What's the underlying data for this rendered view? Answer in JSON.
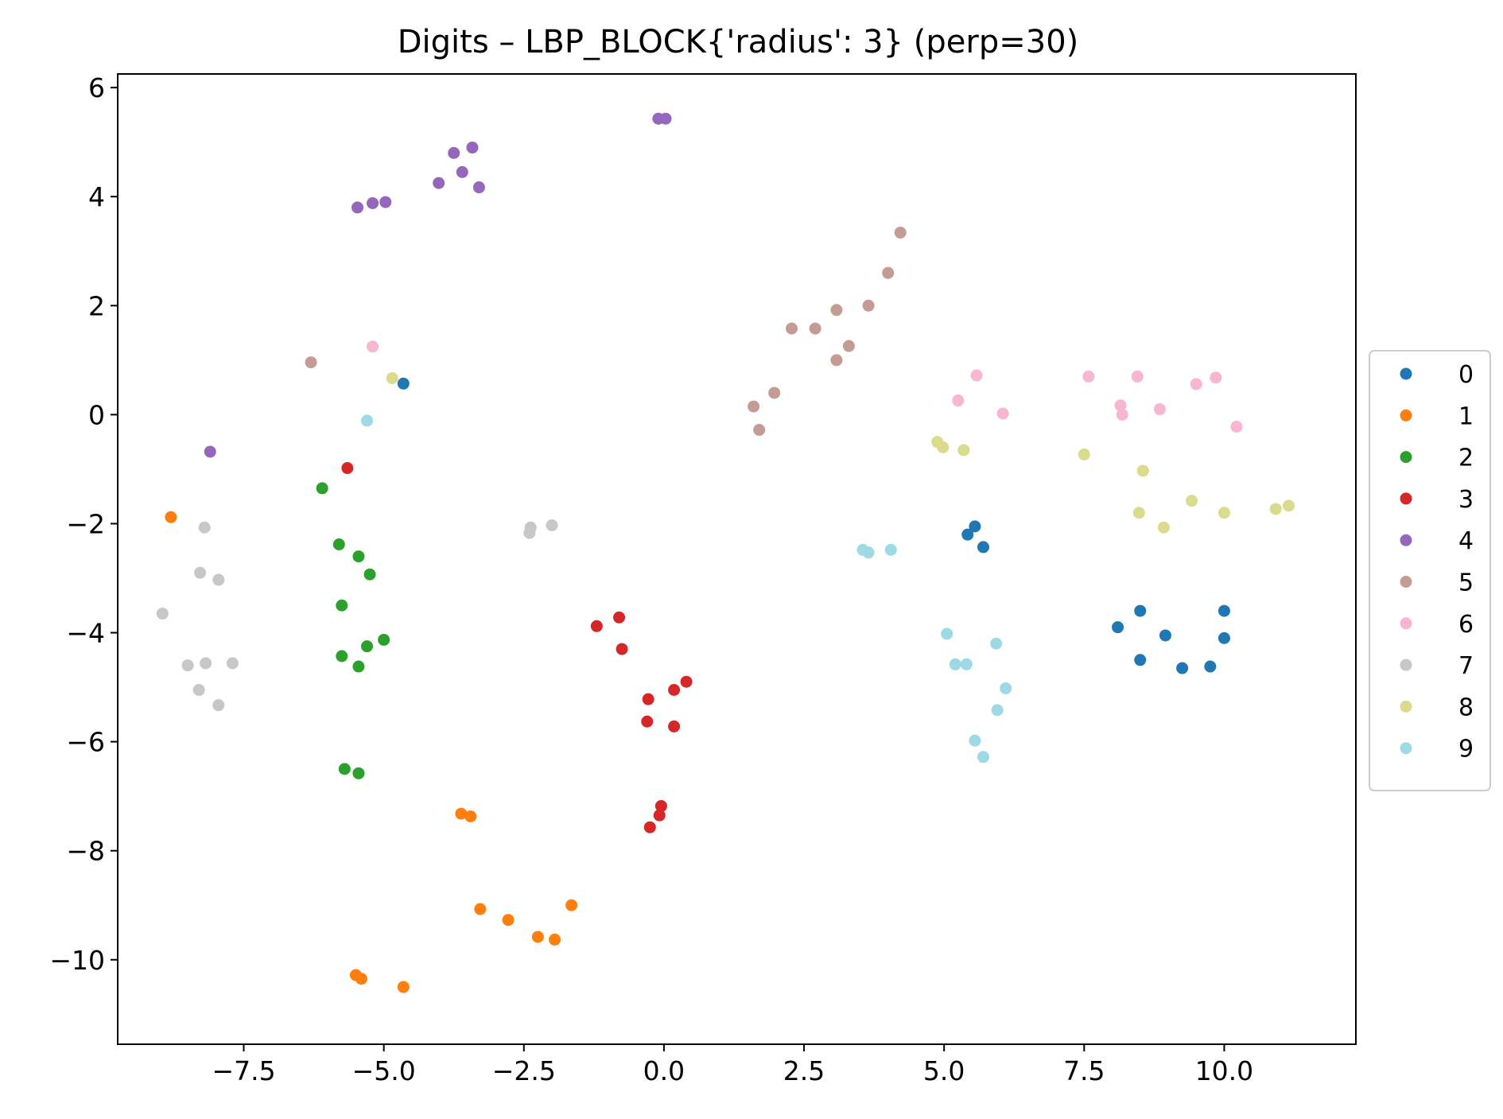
{
  "chart_data": {
    "type": "scatter",
    "title": "Digits – LBP_BLOCK{'radius': 3} (perp=30)",
    "xlabel": "",
    "ylabel": "",
    "xlim": [
      -9.75,
      12.35
    ],
    "ylim": [
      -11.55,
      6.25
    ],
    "xticks": [
      -7.5,
      -5.0,
      -2.5,
      0.0,
      2.5,
      5.0,
      7.5,
      10.0
    ],
    "xtick_labels": [
      "−7.5",
      "−5.0",
      "−2.5",
      "0.0",
      "2.5",
      "5.0",
      "7.5",
      "10.0"
    ],
    "yticks": [
      6,
      4,
      2,
      0,
      -2,
      -4,
      -6,
      -8,
      -10
    ],
    "ytick_labels": [
      "6",
      "4",
      "2",
      "0",
      "−2",
      "−4",
      "−6",
      "−8",
      "−10"
    ],
    "grid": false,
    "legend_position": "outside-right",
    "series": [
      {
        "name": "0",
        "color": "#1f77b4",
        "points": [
          [
            -4.65,
            0.57
          ],
          [
            5.55,
            -2.05
          ],
          [
            5.42,
            -2.2
          ],
          [
            5.7,
            -2.43
          ],
          [
            8.5,
            -3.6
          ],
          [
            10.0,
            -3.6
          ],
          [
            8.1,
            -3.9
          ],
          [
            8.95,
            -4.05
          ],
          [
            10.0,
            -4.1
          ],
          [
            8.5,
            -4.5
          ],
          [
            9.25,
            -4.65
          ],
          [
            9.75,
            -4.62
          ]
        ]
      },
      {
        "name": "1",
        "color": "#ff7f0e",
        "points": [
          [
            -8.8,
            -1.88
          ],
          [
            -3.62,
            -7.32
          ],
          [
            -3.45,
            -7.37
          ],
          [
            -3.28,
            -9.07
          ],
          [
            -2.78,
            -9.27
          ],
          [
            -1.65,
            -9.0
          ],
          [
            -2.25,
            -9.58
          ],
          [
            -1.95,
            -9.63
          ],
          [
            -5.5,
            -10.28
          ],
          [
            -5.4,
            -10.35
          ],
          [
            -4.65,
            -10.5
          ]
        ]
      },
      {
        "name": "2",
        "color": "#2ca02c",
        "points": [
          [
            -6.1,
            -1.35
          ],
          [
            -5.8,
            -2.38
          ],
          [
            -5.45,
            -2.6
          ],
          [
            -5.25,
            -2.93
          ],
          [
            -5.75,
            -3.5
          ],
          [
            -5.0,
            -4.13
          ],
          [
            -5.3,
            -4.25
          ],
          [
            -5.75,
            -4.43
          ],
          [
            -5.45,
            -4.62
          ],
          [
            -5.7,
            -6.5
          ],
          [
            -5.45,
            -6.58
          ]
        ]
      },
      {
        "name": "3",
        "color": "#d62728",
        "points": [
          [
            -5.65,
            -0.98
          ],
          [
            -1.2,
            -3.88
          ],
          [
            -0.8,
            -3.72
          ],
          [
            -0.75,
            -4.3
          ],
          [
            0.4,
            -4.9
          ],
          [
            0.18,
            -5.05
          ],
          [
            -0.28,
            -5.22
          ],
          [
            -0.3,
            -5.63
          ],
          [
            0.18,
            -5.72
          ],
          [
            -0.05,
            -7.18
          ],
          [
            -0.08,
            -7.35
          ],
          [
            -0.25,
            -7.57
          ]
        ]
      },
      {
        "name": "4",
        "color": "#9467bd",
        "points": [
          [
            -0.1,
            5.43
          ],
          [
            0.03,
            5.43
          ],
          [
            -3.42,
            4.9
          ],
          [
            -3.75,
            4.8
          ],
          [
            -3.6,
            4.45
          ],
          [
            -4.02,
            4.25
          ],
          [
            -3.3,
            4.17
          ],
          [
            -4.97,
            3.9
          ],
          [
            -5.2,
            3.88
          ],
          [
            -5.47,
            3.8
          ],
          [
            -8.1,
            -0.68
          ]
        ]
      },
      {
        "name": "5",
        "color": "#c49c94",
        "points": [
          [
            4.22,
            3.34
          ],
          [
            4.0,
            2.6
          ],
          [
            3.65,
            2.0
          ],
          [
            3.08,
            1.92
          ],
          [
            2.28,
            1.58
          ],
          [
            2.7,
            1.58
          ],
          [
            3.3,
            1.26
          ],
          [
            3.08,
            1.0
          ],
          [
            -6.3,
            0.96
          ],
          [
            1.97,
            0.4
          ],
          [
            1.6,
            0.15
          ],
          [
            1.7,
            -0.28
          ]
        ]
      },
      {
        "name": "6",
        "color": "#f7b6d2",
        "points": [
          [
            -5.2,
            1.25
          ],
          [
            5.58,
            0.72
          ],
          [
            7.58,
            0.7
          ],
          [
            8.45,
            0.7
          ],
          [
            9.85,
            0.68
          ],
          [
            9.5,
            0.56
          ],
          [
            5.25,
            0.26
          ],
          [
            8.15,
            0.17
          ],
          [
            8.85,
            0.1
          ],
          [
            6.05,
            0.02
          ],
          [
            8.18,
            0.0
          ],
          [
            10.22,
            -0.22
          ]
        ]
      },
      {
        "name": "7",
        "color": "#c7c7c7",
        "points": [
          [
            -2.0,
            -2.03
          ],
          [
            -2.38,
            -2.07
          ],
          [
            -2.4,
            -2.17
          ],
          [
            -8.2,
            -2.07
          ],
          [
            -8.28,
            -2.9
          ],
          [
            -7.95,
            -3.03
          ],
          [
            -8.95,
            -3.65
          ],
          [
            -8.5,
            -4.6
          ],
          [
            -8.18,
            -4.56
          ],
          [
            -7.7,
            -4.56
          ],
          [
            -8.3,
            -5.05
          ],
          [
            -7.95,
            -5.33
          ]
        ]
      },
      {
        "name": "8",
        "color": "#dbdb8d",
        "points": [
          [
            -4.85,
            0.67
          ],
          [
            4.88,
            -0.5
          ],
          [
            4.98,
            -0.6
          ],
          [
            5.35,
            -0.65
          ],
          [
            7.5,
            -0.73
          ],
          [
            8.55,
            -1.03
          ],
          [
            9.42,
            -1.58
          ],
          [
            8.48,
            -1.8
          ],
          [
            10.0,
            -1.8
          ],
          [
            8.92,
            -2.07
          ],
          [
            10.92,
            -1.73
          ],
          [
            11.15,
            -1.67
          ]
        ]
      },
      {
        "name": "9",
        "color": "#9edae5",
        "points": [
          [
            -5.3,
            -0.11
          ],
          [
            3.55,
            -2.48
          ],
          [
            3.65,
            -2.53
          ],
          [
            4.05,
            -2.48
          ],
          [
            5.05,
            -4.02
          ],
          [
            5.93,
            -4.2
          ],
          [
            5.2,
            -4.58
          ],
          [
            5.4,
            -4.58
          ],
          [
            6.1,
            -5.02
          ],
          [
            5.95,
            -5.42
          ],
          [
            5.55,
            -5.98
          ],
          [
            5.7,
            -6.28
          ]
        ]
      }
    ]
  }
}
